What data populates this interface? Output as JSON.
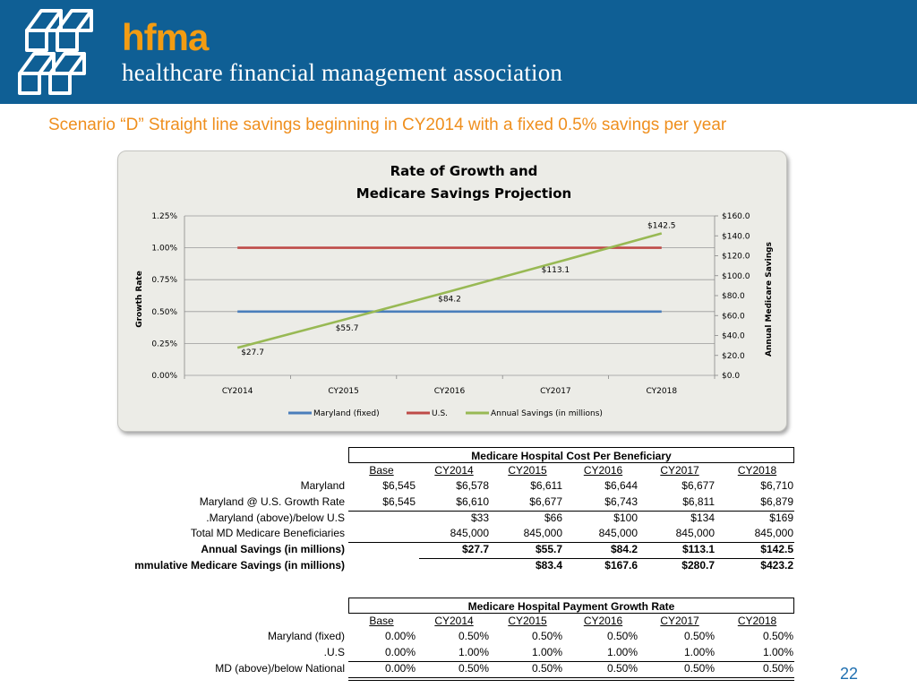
{
  "header": {
    "brand_short": "hfma",
    "brand_long": "healthcare financial management association",
    "logo_icon": "hfma-logo-icon",
    "colors": {
      "banner": "#0f5f95",
      "brand_short": "#f39c12"
    }
  },
  "slide_title": "Scenario “D”  Straight line savings beginning in CY2014 with a fixed 0.5% savings per year",
  "chart_data": {
    "type": "line",
    "title_line1": "Rate of Growth and",
    "title_line2": "Medicare Savings Projection",
    "xlabel": "",
    "ylabel_left": "Growth Rate",
    "ylabel_right": "Annual Medicare  Savings",
    "categories": [
      "CY2014",
      "CY2015",
      "CY2016",
      "CY2017",
      "CY2018"
    ],
    "y_left_ticks": [
      "0.00%",
      "0.25%",
      "0.50%",
      "0.75%",
      "1.00%",
      "1.25%"
    ],
    "y_left_range": [
      0,
      1.25
    ],
    "y_right_ticks": [
      "$0.0",
      "$20.0",
      "$40.0",
      "$60.0",
      "$80.0",
      "$100.0",
      "$120.0",
      "$140.0",
      "$160.0"
    ],
    "y_right_range": [
      0,
      160
    ],
    "series": [
      {
        "name": "Maryland (fixed)",
        "axis": "left",
        "color": "#4a7ebb",
        "values": [
          0.5,
          0.5,
          0.5,
          0.5,
          0.5
        ]
      },
      {
        "name": "U.S.",
        "axis": "left",
        "color": "#be4b48",
        "values": [
          1.0,
          1.0,
          1.0,
          1.0,
          1.0
        ]
      },
      {
        "name": "Annual Savings (in millions)",
        "axis": "right",
        "color": "#98b954",
        "values": [
          27.7,
          55.7,
          84.2,
          113.1,
          142.5
        ],
        "labels": [
          "$27.7",
          "$55.7",
          "$84.2",
          "$113.1",
          "$142.5"
        ]
      }
    ],
    "grid": "horizontal",
    "legend_position": "bottom"
  },
  "cost_table": {
    "title": "Medicare Hospital Cost Per Beneficiary",
    "headers": [
      "Base",
      "CY2014",
      "CY2015",
      "CY2016",
      "CY2017",
      "CY2018"
    ],
    "rows": [
      {
        "label": "Maryland",
        "values": [
          "$6,545",
          "$6,578",
          "$6,611",
          "$6,644",
          "$6,677",
          "$6,710"
        ],
        "bold": false
      },
      {
        "label": "Maryland @ U.S. Growth Rate",
        "values": [
          "$6,545",
          "$6,610",
          "$6,677",
          "$6,743",
          "$6,811",
          "$6,879"
        ],
        "bold": false
      },
      {
        "label": "Maryland (above)/below U.S.",
        "values": [
          "",
          "$33",
          "$66",
          "$100",
          "$134",
          "$169"
        ],
        "bold": false
      },
      {
        "label": "Total MD Medicare Beneficiaries",
        "values": [
          "",
          "845,000",
          "845,000",
          "845,000",
          "845,000",
          "845,000"
        ],
        "bold": false
      },
      {
        "label": "Annual Savings (in millions)",
        "values": [
          "",
          "$27.7",
          "$55.7",
          "$84.2",
          "$113.1",
          "$142.5"
        ],
        "bold": true
      },
      {
        "label": "mmulative Medicare Savings (in millions)",
        "values": [
          "",
          "",
          "$83.4",
          "$167.6",
          "$280.7",
          "$423.2"
        ],
        "bold": true
      }
    ]
  },
  "growth_table": {
    "title": "Medicare Hospital Payment Growth Rate",
    "headers": [
      "Base",
      "CY2014",
      "CY2015",
      "CY2016",
      "CY2017",
      "CY2018"
    ],
    "rows": [
      {
        "label": "Maryland (fixed)",
        "values": [
          "0.00%",
          "0.50%",
          "0.50%",
          "0.50%",
          "0.50%",
          "0.50%"
        ]
      },
      {
        "label": "U.S.",
        "values": [
          "0.00%",
          "1.00%",
          "1.00%",
          "1.00%",
          "1.00%",
          "1.00%"
        ]
      },
      {
        "label": "MD (above)/below National",
        "values": [
          "0.00%",
          "0.50%",
          "0.50%",
          "0.50%",
          "0.50%",
          "0.50%"
        ]
      }
    ]
  },
  "page_number": "22"
}
